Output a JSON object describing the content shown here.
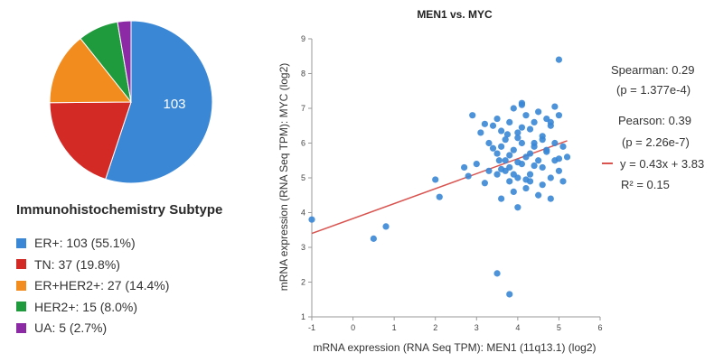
{
  "pie": {
    "slice_label": "103",
    "legend_title": "Immunohistochemistry Subtype",
    "items": [
      {
        "label": "ER+: 103 (55.1%)",
        "value": 103,
        "color": "#3a87d6"
      },
      {
        "label": "TN: 37 (19.8%)",
        "value": 37,
        "color": "#d42a26"
      },
      {
        "label": "ER+HER2+: 27 (14.4%)",
        "value": 27,
        "color": "#f28c1f"
      },
      {
        "label": "HER2+: 15 (8.0%)",
        "value": 15,
        "color": "#1f9a3c"
      },
      {
        "label": "UA: 5 (2.7%)",
        "value": 5,
        "color": "#8c2aa6"
      }
    ]
  },
  "stats": {
    "spearman": "Spearman: 0.29",
    "spearman_p": "(p = 1.377e-4)",
    "pearson": "Pearson: 0.39",
    "pearson_p": "(p = 2.26e-7)",
    "regression": "y = 0.43x + 3.83",
    "r2": "R² = 0.15"
  },
  "chart_data": [
    {
      "type": "pie",
      "categories": [
        "ER+",
        "TN",
        "ER+HER2+",
        "HER2+",
        "UA"
      ],
      "values": [
        103,
        37,
        27,
        15,
        5
      ],
      "data_labels": [
        "103"
      ],
      "legend_title": "Immunohistochemistry Subtype",
      "legend": "bottom"
    },
    {
      "type": "scatter",
      "title": "MEN1 vs. MYC",
      "xlabel": "mRNA expression (RNA Seq TPM): MEN1 (11q13.1) (log2)",
      "ylabel": "mRNA expression (RNA Seq TPM): MYC (log2)",
      "xlim": [
        -1,
        6
      ],
      "ylim": [
        1,
        9
      ],
      "xticks": [
        "-1",
        "0",
        "1",
        "2",
        "3",
        "4",
        "5",
        "6"
      ],
      "yticks": [
        "1",
        "2",
        "3",
        "4",
        "5",
        "6",
        "7",
        "8",
        "9"
      ],
      "grid": false,
      "point_color": "#3a87d6",
      "regression": {
        "slope": 0.43,
        "intercept": 3.83,
        "x_range": [
          -1,
          5.2
        ],
        "color": "#d9534f"
      },
      "x": [
        -1.0,
        0.5,
        0.8,
        2.0,
        2.1,
        2.7,
        2.9,
        3.0,
        3.1,
        3.2,
        3.3,
        3.4,
        3.5,
        3.5,
        3.6,
        3.6,
        3.7,
        3.7,
        3.8,
        3.8,
        3.8,
        3.9,
        3.9,
        4.0,
        4.0,
        4.0,
        4.1,
        4.1,
        4.1,
        4.2,
        4.2,
        4.2,
        4.3,
        4.3,
        4.3,
        4.4,
        4.4,
        4.5,
        4.5,
        4.5,
        4.6,
        4.6,
        4.7,
        4.7,
        4.8,
        4.8,
        4.9,
        4.9,
        5.0,
        5.0,
        5.0,
        5.1,
        5.1,
        5.2,
        3.4,
        3.6,
        3.9,
        4.2,
        4.4,
        4.6,
        4.8,
        3.3,
        3.5,
        3.7,
        4.0,
        4.3,
        4.9,
        3.9,
        4.1,
        3.8,
        4.6,
        3.5,
        3.8,
        4.7,
        5.0,
        4.1,
        2.8,
        3.2,
        3.6,
        4.0,
        4.4,
        4.8,
        3.55,
        3.75
      ],
      "y": [
        3.8,
        3.25,
        3.6,
        4.95,
        4.45,
        5.3,
        6.8,
        5.4,
        6.3,
        4.85,
        5.2,
        6.5,
        5.7,
        5.1,
        5.9,
        4.4,
        6.1,
        5.5,
        6.6,
        5.3,
        4.9,
        7.0,
        5.8,
        6.3,
        5.0,
        4.15,
        7.1,
        6.0,
        5.4,
        6.8,
        5.6,
        4.7,
        6.4,
        5.7,
        5.1,
        6.6,
        6.0,
        6.9,
        5.5,
        4.5,
        6.2,
        5.3,
        6.7,
        5.8,
        6.5,
        4.4,
        6.0,
        5.5,
        8.4,
        6.8,
        5.2,
        5.9,
        4.9,
        5.6,
        5.85,
        6.35,
        5.1,
        4.95,
        5.35,
        6.1,
        6.6,
        6.0,
        6.7,
        5.2,
        5.45,
        4.9,
        7.05,
        4.6,
        6.45,
        5.65,
        4.8,
        2.25,
        1.65,
        5.75,
        5.55,
        7.15,
        5.05,
        6.55,
        5.25,
        6.15,
        5.9,
        5.0,
        5.5,
        6.25
      ]
    }
  ]
}
